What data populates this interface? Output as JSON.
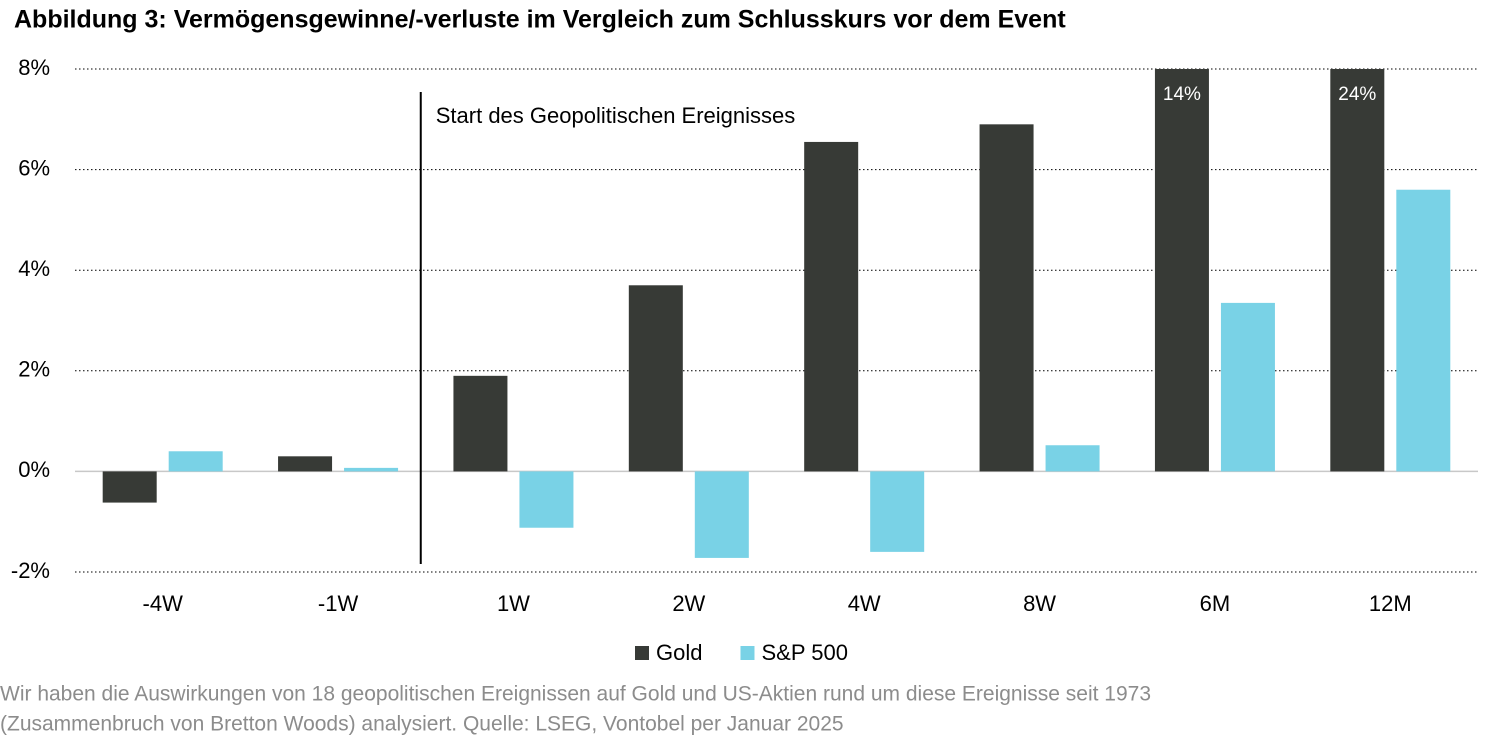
{
  "chart_data": {
    "type": "bar",
    "title": "Abbildung 3: Vermögensgewinne/-verluste im Vergleich zum Schlusskurs vor dem Event",
    "categories": [
      "-4W",
      "-1W",
      "1W",
      "2W",
      "4W",
      "8W",
      "6M",
      "12M"
    ],
    "series": [
      {
        "name": "Gold",
        "color": "#373a36",
        "values": [
          -0.62,
          0.3,
          1.9,
          3.7,
          6.55,
          6.9,
          14,
          24
        ],
        "value_labels": [
          null,
          null,
          null,
          null,
          null,
          null,
          "14%",
          "24%"
        ]
      },
      {
        "name": "S&P 500",
        "color": "#79d2e6",
        "values": [
          0.4,
          0.07,
          -1.12,
          -1.72,
          -1.6,
          0.52,
          3.35,
          5.6
        ]
      }
    ],
    "ylim": [
      -2,
      8
    ],
    "yticks": [
      {
        "value": -2,
        "label": "-2%"
      },
      {
        "value": 0,
        "label": "0%"
      },
      {
        "value": 2,
        "label": "2%"
      },
      {
        "value": 4,
        "label": "4%"
      },
      {
        "value": 6,
        "label": "6%"
      },
      {
        "value": 8,
        "label": "8%"
      }
    ],
    "grid": true,
    "annotation": "Start des Geopolitischen Ereignisses",
    "legend": "bottom",
    "notes": [
      "Wir haben die Auswirkungen von 18 geopolitischen Ereignissen auf Gold und US-Aktien rund um diese Ereignisse seit 1973",
      "(Zusammenbruch von Bretton Woods) analysiert. Quelle: LSEG, Vontobel per Januar 2025"
    ]
  }
}
